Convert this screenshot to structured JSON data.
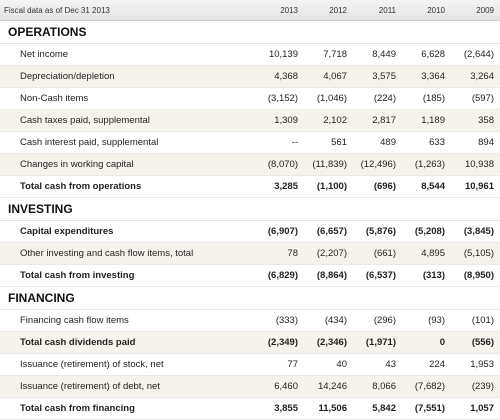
{
  "header": {
    "label": "Fiscal data as of Dec 31 2013",
    "years": [
      "2013",
      "2012",
      "2011",
      "2010",
      "2009"
    ]
  },
  "sections": [
    {
      "title": "OPERATIONS",
      "rows": [
        {
          "label": "Net income",
          "bold": false,
          "values": [
            "10,139",
            "7,718",
            "8,449",
            "6,628",
            "(2,644)"
          ]
        },
        {
          "label": "Depreciation/depletion",
          "bold": false,
          "values": [
            "4,368",
            "4,067",
            "3,575",
            "3,364",
            "3,264"
          ]
        },
        {
          "label": "Non-Cash items",
          "bold": false,
          "values": [
            "(3,152)",
            "(1,046)",
            "(224)",
            "(185)",
            "(597)"
          ]
        },
        {
          "label": "Cash taxes paid, supplemental",
          "bold": false,
          "values": [
            "1,309",
            "2,102",
            "2,817",
            "1,189",
            "358"
          ]
        },
        {
          "label": "Cash interest paid, supplemental",
          "bold": false,
          "values": [
            "--",
            "561",
            "489",
            "633",
            "894"
          ]
        },
        {
          "label": "Changes in working capital",
          "bold": false,
          "values": [
            "(8,070)",
            "(11,839)",
            "(12,496)",
            "(1,263)",
            "10,938"
          ]
        },
        {
          "label": "Total cash from operations",
          "bold": true,
          "values": [
            "3,285",
            "(1,100)",
            "(696)",
            "8,544",
            "10,961"
          ]
        }
      ]
    },
    {
      "title": "INVESTING",
      "rows": [
        {
          "label": "Capital expenditures",
          "bold": true,
          "values": [
            "(6,907)",
            "(6,657)",
            "(5,876)",
            "(5,208)",
            "(3,845)"
          ]
        },
        {
          "label": "Other investing and cash flow items, total",
          "bold": false,
          "values": [
            "78",
            "(2,207)",
            "(661)",
            "4,895",
            "(5,105)"
          ]
        },
        {
          "label": "Total cash from investing",
          "bold": true,
          "values": [
            "(6,829)",
            "(8,864)",
            "(6,537)",
            "(313)",
            "(8,950)"
          ]
        }
      ]
    },
    {
      "title": "FINANCING",
      "rows": [
        {
          "label": "Financing cash flow items",
          "bold": false,
          "values": [
            "(333)",
            "(434)",
            "(296)",
            "(93)",
            "(101)"
          ]
        },
        {
          "label": "Total cash dividends paid",
          "bold": true,
          "values": [
            "(2,349)",
            "(2,346)",
            "(1,971)",
            "0",
            "(556)"
          ]
        },
        {
          "label": "Issuance (retirement) of stock, net",
          "bold": false,
          "values": [
            "77",
            "40",
            "43",
            "224",
            "1,953"
          ]
        },
        {
          "label": "Issuance (retirement) of debt, net",
          "bold": false,
          "values": [
            "6,460",
            "14,246",
            "8,066",
            "(7,682)",
            "(239)"
          ]
        },
        {
          "label": "Total cash from financing",
          "bold": true,
          "values": [
            "3,855",
            "11,506",
            "5,842",
            "(7,551)",
            "1,057"
          ]
        }
      ]
    }
  ]
}
